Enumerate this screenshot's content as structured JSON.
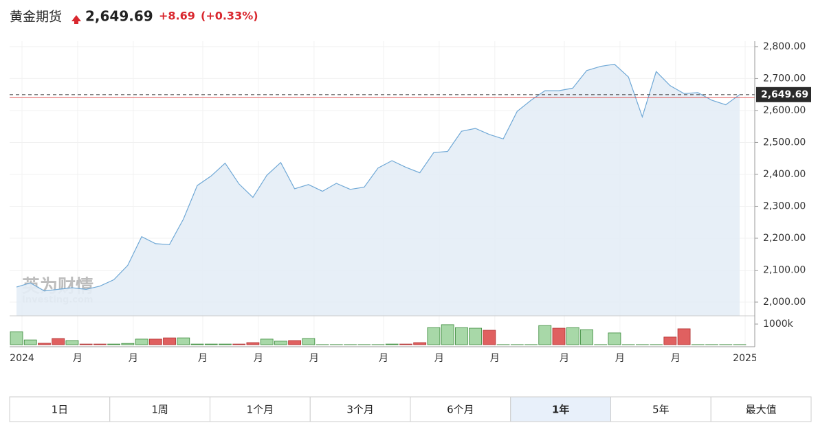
{
  "header": {
    "title": "黄金期货",
    "price": "2,649.69",
    "change": "+8.69",
    "change_pct": "(+0.33%)"
  },
  "watermark": {
    "cn": "英为财情",
    "en": "Investing.com"
  },
  "chart_data": {
    "type": "area",
    "categories": [
      "2024",
      null,
      null,
      null,
      "月",
      null,
      null,
      null,
      "月",
      null,
      null,
      null,
      null,
      "月",
      null,
      null,
      null,
      "月",
      null,
      null,
      null,
      "月",
      null,
      null,
      null,
      null,
      "月",
      null,
      null,
      null,
      "月",
      null,
      null,
      null,
      "月",
      null,
      null,
      null,
      null,
      "月",
      null,
      null,
      null,
      "月",
      null,
      null,
      null,
      "月",
      null,
      null,
      null,
      null,
      "2025"
    ],
    "series": [
      {
        "color": "#6fa8d6",
        "values": [
          2047,
          2060,
          2035,
          2040,
          2045,
          2040,
          2050,
          2070,
          2115,
          2205,
          2183,
          2180,
          2260,
          2365,
          2395,
          2435,
          2370,
          2328,
          2397,
          2437,
          2355,
          2368,
          2347,
          2372,
          2353,
          2360,
          2420,
          2443,
          2422,
          2405,
          2468,
          2472,
          2535,
          2544,
          2525,
          2511,
          2597,
          2632,
          2662,
          2662,
          2670,
          2725,
          2738,
          2745,
          2705,
          2580,
          2722,
          2678,
          2653,
          2656,
          2632,
          2618,
          2649.69
        ]
      }
    ],
    "ylim": [
      1957,
      2817
    ],
    "yticks": [
      {
        "value": 2000,
        "label": "2,000.00"
      },
      {
        "value": 2100,
        "label": "2,100.00"
      },
      {
        "value": 2200,
        "label": "2,200.00"
      },
      {
        "value": 2300,
        "label": "2,300.00"
      },
      {
        "value": 2400,
        "label": "2,400.00"
      },
      {
        "value": 2500,
        "label": "2,500.00"
      },
      {
        "value": 2600,
        "label": "2,600.00"
      },
      {
        "value": 2700,
        "label": "2,700.00"
      },
      {
        "value": 2800,
        "label": "2,800.00"
      }
    ],
    "grid": true,
    "current_value": 2649.69,
    "previous_close": 2641,
    "volume": {
      "values": [
        630000,
        230000,
        70000,
        300000,
        200000,
        30000,
        30000,
        30000,
        60000,
        270000,
        270000,
        330000,
        330000,
        30000,
        30000,
        30000,
        30000,
        100000,
        270000,
        170000,
        200000,
        300000,
        5000,
        5000,
        5000,
        5000,
        5000,
        30000,
        30000,
        100000,
        830000,
        970000,
        830000,
        800000,
        700000,
        5000,
        5000,
        5000,
        930000,
        800000,
        830000,
        730000,
        5000,
        570000,
        5000,
        5000,
        5000,
        370000,
        770000,
        5000,
        5000,
        5000,
        5000
      ],
      "colors": [
        "#a8d8a8",
        "#a8d8a8",
        "#e06060",
        "#e06060",
        "#a8d8a8",
        "#e06060",
        "#e06060",
        "#a8d8a8",
        "#a8d8a8",
        "#a8d8a8",
        "#e06060",
        "#e06060",
        "#a8d8a8",
        "#a8d8a8",
        "#a8d8a8",
        "#a8d8a8",
        "#e06060",
        "#e06060",
        "#a8d8a8",
        "#a8d8a8",
        "#e06060",
        "#a8d8a8",
        "#a8d8a8",
        "#a8d8a8",
        "#a8d8a8",
        "#a8d8a8",
        "#a8d8a8",
        "#a8d8a8",
        "#e06060",
        "#e06060",
        "#a8d8a8",
        "#a8d8a8",
        "#a8d8a8",
        "#a8d8a8",
        "#e06060",
        "#a8d8a8",
        "#a8d8a8",
        "#a8d8a8",
        "#a8d8a8",
        "#e06060",
        "#a8d8a8",
        "#a8d8a8",
        "#a8d8a8",
        "#a8d8a8",
        "#a8d8a8",
        "#a8d8a8",
        "#a8d8a8",
        "#e06060",
        "#e06060",
        "#a8d8a8",
        "#a8d8a8",
        "#a8d8a8",
        "#a8d8a8"
      ],
      "ylim": [
        0,
        1333333
      ],
      "yticks": [
        {
          "value": 1000000,
          "label": "1000k"
        }
      ]
    }
  },
  "ranges": [
    "1日",
    "1周",
    "1个月",
    "3个月",
    "6个月",
    "1年",
    "5年",
    "最大值"
  ],
  "selected_range": 5
}
